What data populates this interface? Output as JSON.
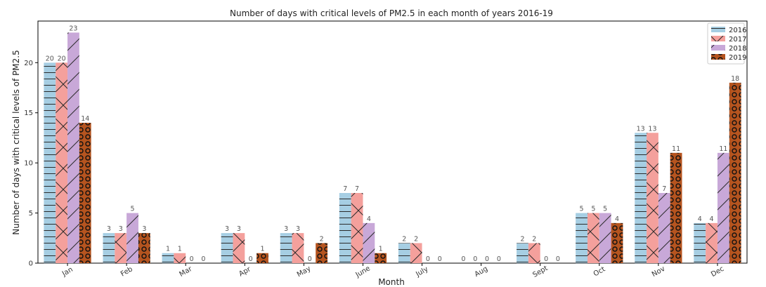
{
  "chart_data": {
    "type": "bar",
    "title": "Number of days with critical levels of PM2.5 in each month of years 2016-19",
    "xlabel": "Month",
    "ylabel": "Number of days with critical levels of PM2.5",
    "categories": [
      "Jan",
      "Feb",
      "Mar",
      "Apr",
      "May",
      "June",
      "July",
      "Aug",
      "Sept",
      "Oct",
      "Nov",
      "Dec"
    ],
    "series": [
      {
        "name": "2016",
        "values": [
          20,
          3,
          1,
          3,
          3,
          7,
          2,
          0,
          2,
          5,
          13,
          4
        ],
        "color": "#a6cee3",
        "hatch": "horizontal"
      },
      {
        "name": "2017",
        "values": [
          20,
          3,
          1,
          3,
          3,
          7,
          2,
          0,
          2,
          5,
          13,
          4
        ],
        "color": "#f4a09c",
        "hatch": "cross"
      },
      {
        "name": "2018",
        "values": [
          23,
          5,
          0,
          0,
          0,
          4,
          0,
          0,
          0,
          5,
          7,
          11
        ],
        "color": "#c8a8d8",
        "hatch": "diagonal"
      },
      {
        "name": "2019",
        "values": [
          14,
          3,
          0,
          1,
          2,
          1,
          0,
          0,
          0,
          4,
          11,
          18
        ],
        "color": "#b5541f",
        "hatch": "circles"
      }
    ],
    "yticks": [
      0,
      5,
      10,
      15,
      20
    ],
    "ylim": [
      0,
      24.15
    ],
    "grid": false,
    "legend_position": "top-right"
  }
}
